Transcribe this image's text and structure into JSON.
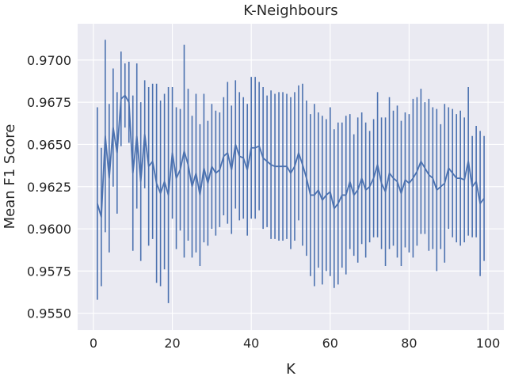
{
  "chart_data": {
    "type": "line",
    "title": "K-Neighbours",
    "xlabel": "K",
    "ylabel": "Mean F1 Score",
    "xlim": [
      -4,
      104
    ],
    "ylim": [
      0.954,
      0.97215
    ],
    "xticks": [
      0,
      20,
      40,
      60,
      80,
      100
    ],
    "yticks": [
      0.955,
      0.9575,
      0.96,
      0.9625,
      0.965,
      0.9675,
      0.97
    ],
    "xtick_labels": [
      "0",
      "20",
      "40",
      "60",
      "80",
      "100"
    ],
    "ytick_labels": [
      "0.9550",
      "0.9575",
      "0.9600",
      "0.9625",
      "0.9650",
      "0.9675",
      "0.9700"
    ],
    "grid": true,
    "series": [
      {
        "color": "#4C72B0",
        "x": [
          1,
          2,
          3,
          4,
          5,
          6,
          7,
          8,
          9,
          10,
          11,
          12,
          13,
          14,
          15,
          16,
          17,
          18,
          19,
          20,
          21,
          22,
          23,
          24,
          25,
          26,
          27,
          28,
          29,
          30,
          31,
          32,
          33,
          34,
          35,
          36,
          37,
          38,
          39,
          40,
          41,
          42,
          43,
          44,
          45,
          46,
          47,
          48,
          49,
          50,
          51,
          52,
          53,
          54,
          55,
          56,
          57,
          58,
          59,
          60,
          61,
          62,
          63,
          64,
          65,
          66,
          67,
          68,
          69,
          70,
          71,
          72,
          73,
          74,
          75,
          76,
          77,
          78,
          79,
          80,
          81,
          82,
          83,
          84,
          85,
          86,
          87,
          88,
          89,
          90,
          91,
          92,
          93,
          94,
          95,
          96,
          97,
          98,
          99
        ],
        "y": [
          0.9615,
          0.9607,
          0.9655,
          0.963,
          0.966,
          0.9645,
          0.9677,
          0.9679,
          0.9675,
          0.9633,
          0.9655,
          0.9628,
          0.9656,
          0.9637,
          0.964,
          0.9627,
          0.9621,
          0.9628,
          0.962,
          0.9645,
          0.963,
          0.9635,
          0.9646,
          0.9638,
          0.9625,
          0.9633,
          0.962,
          0.9636,
          0.9627,
          0.9637,
          0.9633,
          0.9635,
          0.9643,
          0.9645,
          0.9635,
          0.965,
          0.9643,
          0.9642,
          0.9635,
          0.9648,
          0.9648,
          0.9649,
          0.9642,
          0.964,
          0.9638,
          0.9637,
          0.9637,
          0.9637,
          0.9637,
          0.9633,
          0.9637,
          0.9645,
          0.9638,
          0.963,
          0.962,
          0.962,
          0.9623,
          0.9617,
          0.962,
          0.9622,
          0.9612,
          0.9615,
          0.962,
          0.962,
          0.9628,
          0.962,
          0.9623,
          0.963,
          0.9623,
          0.9625,
          0.963,
          0.9638,
          0.9627,
          0.9622,
          0.9633,
          0.963,
          0.9628,
          0.9621,
          0.9629,
          0.9627,
          0.963,
          0.9634,
          0.964,
          0.9636,
          0.9632,
          0.963,
          0.9623,
          0.9625,
          0.9627,
          0.9636,
          0.9633,
          0.963,
          0.963,
          0.9629,
          0.964,
          0.9625,
          0.9628,
          0.9615,
          0.9618
        ],
        "err": [
          0.0057,
          0.0041,
          0.0057,
          0.0044,
          0.0035,
          0.0036,
          0.0028,
          0.0019,
          0.0024,
          0.0046,
          0.0043,
          0.0047,
          0.0032,
          0.0047,
          0.0046,
          0.0059,
          0.0055,
          0.0052,
          0.0064,
          0.0039,
          0.0042,
          0.0036,
          0.0063,
          0.0045,
          0.0042,
          0.0047,
          0.0042,
          0.0044,
          0.0037,
          0.0037,
          0.0037,
          0.0034,
          0.0035,
          0.0042,
          0.0038,
          0.0038,
          0.0038,
          0.0036,
          0.0039,
          0.0042,
          0.0042,
          0.0038,
          0.0042,
          0.0039,
          0.0044,
          0.0043,
          0.0044,
          0.0044,
          0.0043,
          0.0045,
          0.0044,
          0.004,
          0.0048,
          0.0046,
          0.0048,
          0.0054,
          0.0046,
          0.005,
          0.0045,
          0.005,
          0.0047,
          0.0048,
          0.0043,
          0.0047,
          0.004,
          0.0036,
          0.0043,
          0.0039,
          0.004,
          0.0033,
          0.0035,
          0.0043,
          0.0039,
          0.0044,
          0.0045,
          0.004,
          0.0045,
          0.0043,
          0.004,
          0.0041,
          0.0047,
          0.0044,
          0.0043,
          0.0039,
          0.0045,
          0.0042,
          0.0048,
          0.0037,
          0.0047,
          0.0036,
          0.0038,
          0.0038,
          0.004,
          0.0037,
          0.0044,
          0.003,
          0.0033,
          0.0043,
          0.0037
        ]
      }
    ]
  },
  "colors": {
    "plot_background": "#EAEAF2",
    "grid": "#FFFFFF",
    "text": "#262626"
  }
}
